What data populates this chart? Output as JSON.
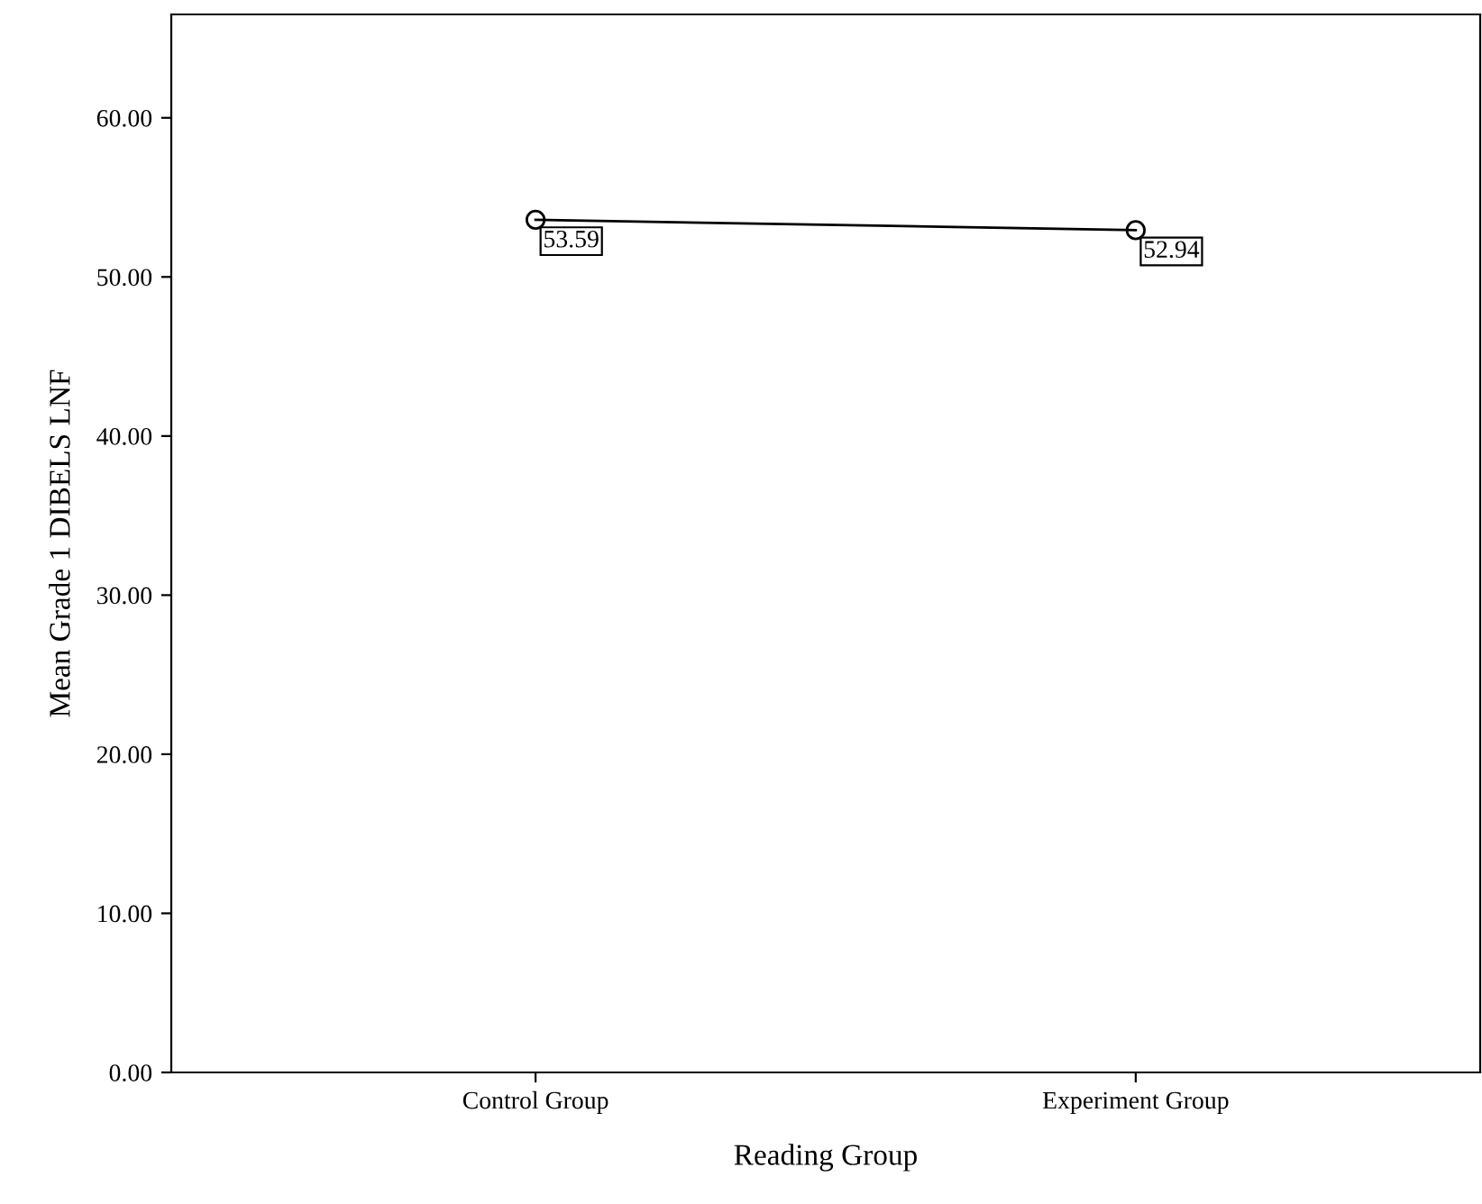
{
  "chart_data": {
    "type": "line",
    "xlabel": "Reading Group",
    "ylabel": "Mean Grade 1 DIBELS LNF",
    "categories": [
      "Control Group",
      "Experiment Group"
    ],
    "series": [
      {
        "color": "#000000",
        "values": [
          53.59,
          52.94
        ]
      }
    ],
    "data_labels": true,
    "marker": "circle",
    "line_style": "solid",
    "grid": false,
    "legend": false,
    "ylim": [
      0,
      66.5
    ],
    "yticks": [
      {
        "value": 0,
        "label": "0.00"
      },
      {
        "value": 10,
        "label": "10.00"
      },
      {
        "value": 20,
        "label": "20.00"
      },
      {
        "value": 30,
        "label": "30.00"
      },
      {
        "value": 40,
        "label": "40.00"
      },
      {
        "value": 50,
        "label": "50.00"
      },
      {
        "value": 60,
        "label": "60.00"
      }
    ]
  }
}
